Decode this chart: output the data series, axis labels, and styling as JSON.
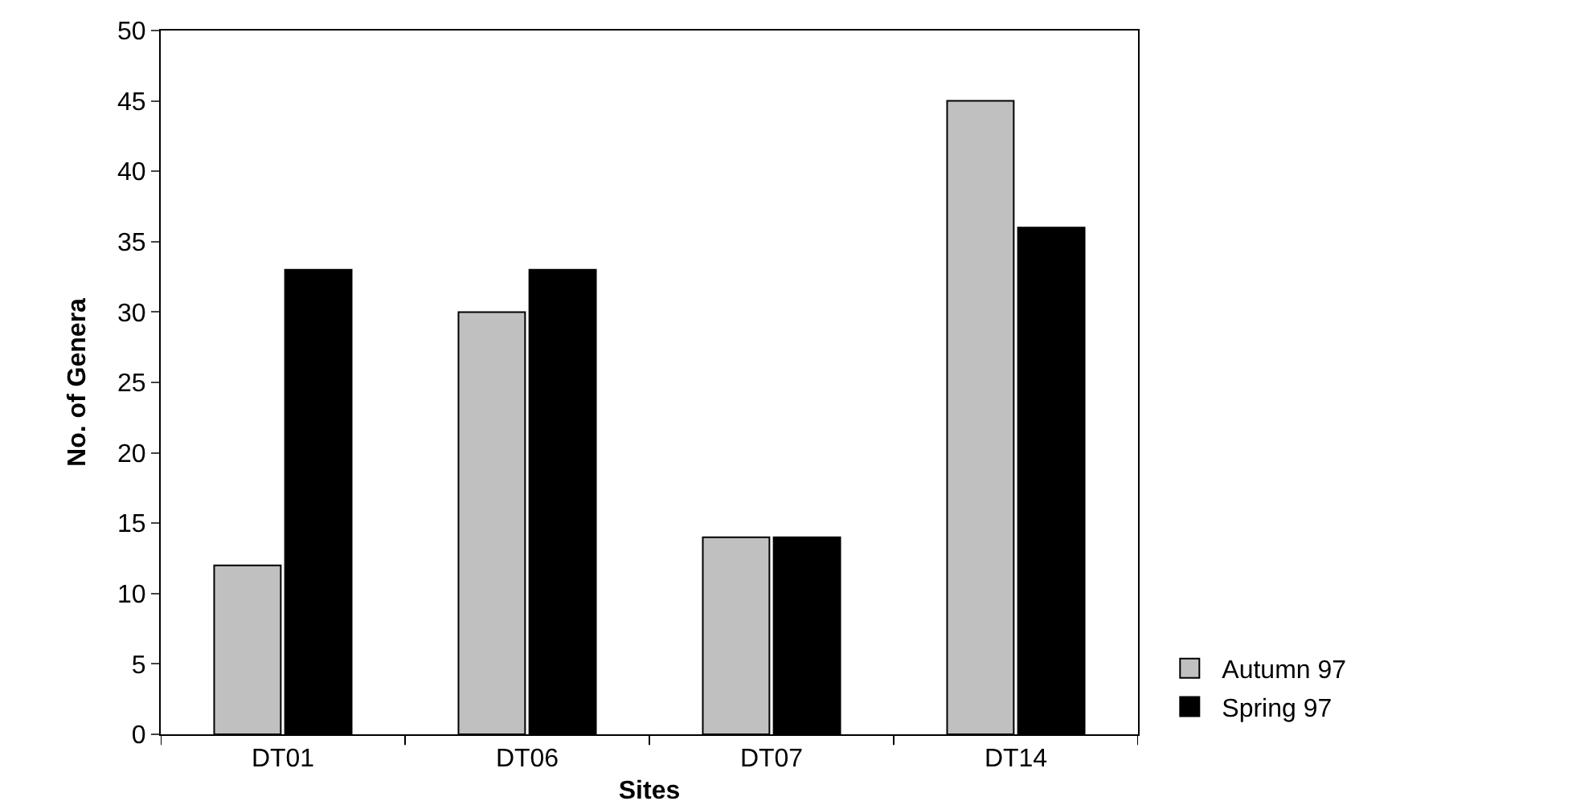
{
  "chart_data": {
    "type": "bar",
    "xlabel": "Sites",
    "ylabel": "No. of Genera",
    "categories": [
      "DT01",
      "DT06",
      "DT07",
      "DT14"
    ],
    "series": [
      {
        "name": "Autumn 97",
        "color": "#c0c0c0",
        "values": [
          12,
          30,
          14,
          45
        ]
      },
      {
        "name": "Spring 97",
        "color": "#000000",
        "values": [
          33,
          33,
          14,
          36
        ]
      }
    ],
    "ylim": [
      0,
      50
    ],
    "yticks": [
      0,
      5,
      10,
      15,
      20,
      25,
      30,
      35,
      40,
      45,
      50
    ],
    "legend": "bottom right"
  }
}
